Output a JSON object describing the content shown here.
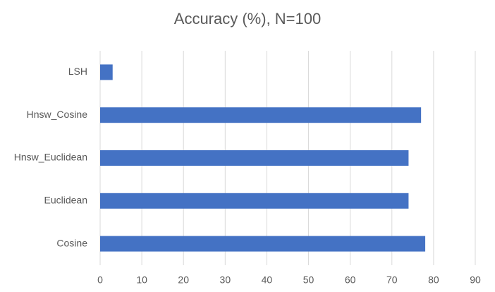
{
  "chart_data": {
    "type": "bar",
    "orientation": "horizontal",
    "title": "Accuracy (%), N=100",
    "categories": [
      "Cosine",
      "Euclidean",
      "Hnsw_Euclidean",
      "Hnsw_Cosine",
      "LSH"
    ],
    "values": [
      78,
      74,
      74,
      77,
      3
    ],
    "color": "#4472c4",
    "xlim": [
      0,
      90
    ],
    "xticks": [
      0,
      10,
      20,
      30,
      40,
      50,
      60,
      70,
      80,
      90
    ],
    "grid": true
  }
}
